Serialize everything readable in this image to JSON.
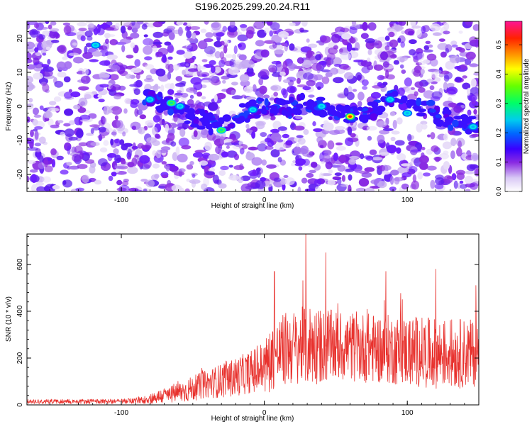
{
  "title": "S196.2025.299.20.24.R11",
  "chart_data": [
    {
      "type": "heatmap",
      "title": "S196.2025.299.20.24.R11",
      "xlabel": "Height of straight line (km)",
      "ylabel": "Frequency (Hz)",
      "xlim": [
        -166,
        150
      ],
      "ylim": [
        -25,
        25
      ],
      "xticks": [
        -100,
        0,
        100
      ],
      "yticks": [
        -20,
        -10,
        0,
        10,
        20
      ],
      "colorbar": {
        "label": "Normalized spectral amplitude",
        "range": [
          0.0,
          0.58
        ],
        "ticks": [
          0.0,
          0.1,
          0.2,
          0.3,
          0.4,
          0.5
        ],
        "colors": [
          "#ffffff",
          "#c9b3f0",
          "#8a2be2",
          "#2a00ff",
          "#0088ff",
          "#00e0e0",
          "#00ff44",
          "#aaff00",
          "#ffff00",
          "#ff9900",
          "#ff0000",
          "#ff1493"
        ]
      },
      "ridge": {
        "description_points_x_km": [
          -80,
          -70,
          -60,
          -45,
          -30,
          -15,
          0,
          15,
          30,
          45,
          60,
          75,
          90,
          105,
          120,
          135,
          150
        ],
        "frequency_hz": [
          3,
          1,
          -1,
          -4,
          -6,
          -2,
          0,
          -1,
          1,
          -1,
          -3,
          -1,
          2,
          1,
          -2,
          -5,
          -6
        ]
      },
      "hotspots": [
        {
          "x": -80,
          "y": 2,
          "value": 0.22
        },
        {
          "x": -65,
          "y": 1,
          "value": 0.28
        },
        {
          "x": -59,
          "y": 0,
          "value": 0.25
        },
        {
          "x": -30,
          "y": -7,
          "value": 0.3
        },
        {
          "x": -8,
          "y": -1,
          "value": 0.18
        },
        {
          "x": 60,
          "y": -3,
          "value": 0.55
        },
        {
          "x": 40,
          "y": 0,
          "value": 0.17
        },
        {
          "x": 88,
          "y": 2,
          "value": 0.2
        },
        {
          "x": 100,
          "y": -2,
          "value": 0.16
        },
        {
          "x": 146,
          "y": -6,
          "value": 0.25
        },
        {
          "x": -118,
          "y": 18,
          "value": 0.18
        }
      ]
    },
    {
      "type": "line",
      "xlabel": "Height of straight line (km)",
      "ylabel": "SNR (10 * v/v)",
      "xlim": [
        -166,
        150
      ],
      "ylim": [
        0,
        730
      ],
      "xticks": [
        -100,
        0,
        100
      ],
      "yticks": [
        0,
        200,
        400,
        600
      ],
      "color": "#e8322e",
      "envelope": {
        "x": [
          -166,
          -100,
          -85,
          -70,
          -55,
          -40,
          -25,
          -10,
          0,
          5,
          15,
          25,
          30,
          40,
          60,
          80,
          100,
          120,
          140,
          150
        ],
        "base": [
          15,
          15,
          20,
          40,
          60,
          90,
          110,
          140,
          160,
          200,
          240,
          250,
          260,
          250,
          250,
          240,
          230,
          220,
          220,
          220
        ],
        "amplitude": [
          10,
          10,
          15,
          35,
          50,
          60,
          80,
          90,
          120,
          140,
          160,
          160,
          180,
          160,
          150,
          150,
          150,
          150,
          150,
          140
        ]
      },
      "peaks": [
        {
          "x": 7,
          "y": 570
        },
        {
          "x": 29,
          "y": 730
        },
        {
          "x": 43,
          "y": 650
        },
        {
          "x": 85,
          "y": 570
        },
        {
          "x": 120,
          "y": 580
        },
        {
          "x": 148,
          "y": 510
        }
      ]
    }
  ]
}
